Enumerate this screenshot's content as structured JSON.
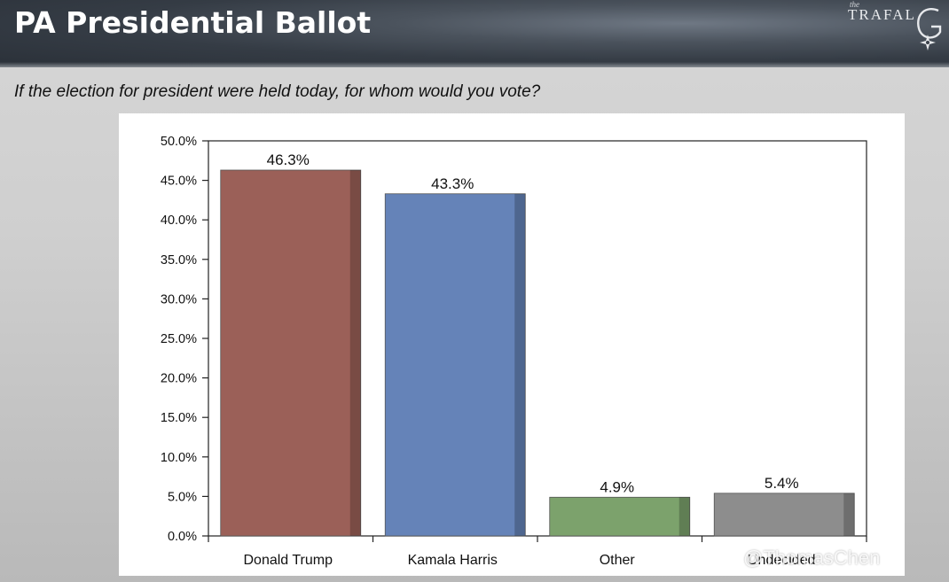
{
  "slide": {
    "title": "PA Presidential Ballot",
    "subtitle": "If the election for president were held today, for whom would you vote?"
  },
  "logo": {
    "the": "the",
    "text": "TRAFAL",
    "mark_icon": "trafalgar-g-compass-icon"
  },
  "watermark": "@ThomasChen",
  "colors": {
    "header_bg": "#3a414a",
    "trump": "#9b6058",
    "harris": "#6583b8",
    "other": "#7ca26c",
    "undecided": "#8d8d8d"
  },
  "chart_data": {
    "type": "bar",
    "title": "",
    "xlabel": "",
    "ylabel": "",
    "categories": [
      "Donald Trump",
      "Kamala Harris",
      "Other",
      "Undecided"
    ],
    "values": [
      46.3,
      43.3,
      4.9,
      5.4
    ],
    "value_labels": [
      "46.3%",
      "43.3%",
      "4.9%",
      "5.4%"
    ],
    "ylim": [
      0,
      50
    ],
    "yticks": [
      0,
      5,
      10,
      15,
      20,
      25,
      30,
      35,
      40,
      45,
      50
    ],
    "ytick_labels": [
      "0.0%",
      "5.0%",
      "10.0%",
      "15.0%",
      "20.0%",
      "25.0%",
      "30.0%",
      "35.0%",
      "40.0%",
      "45.0%",
      "50.0%"
    ],
    "bar_colors": [
      "#9b6058",
      "#6583b8",
      "#7ca26c",
      "#8d8d8d"
    ],
    "grid": false,
    "legend": "none"
  }
}
